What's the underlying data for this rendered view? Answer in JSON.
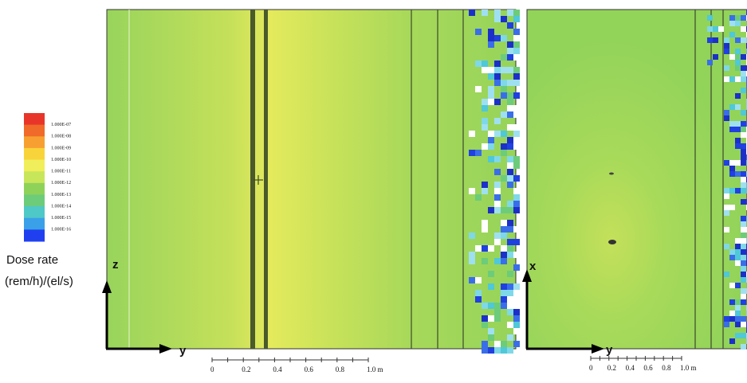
{
  "legend": {
    "labels": [
      "1.000E-07",
      "1.000E-08",
      "1.000E-09",
      "1.000E-10",
      "1.000E-11",
      "1.000E-12",
      "1.000E-13",
      "1.000E-14",
      "1.000E-15",
      "1.000E-16"
    ],
    "title": [
      "Dose rate",
      "(rem/h)/(el/s)"
    ]
  },
  "left_panel": {
    "vertical_axis": "z",
    "horizontal_axis": "y",
    "scale_labels": [
      "0",
      "0.2",
      "0.4",
      "0.6",
      "0.8",
      "1.0 m"
    ]
  },
  "right_panel": {
    "vertical_axis": "x",
    "horizontal_axis": "y",
    "scale_labels": [
      "0",
      "0.2",
      "0.4",
      "0.6",
      "0.8",
      "1.0 m"
    ]
  }
}
